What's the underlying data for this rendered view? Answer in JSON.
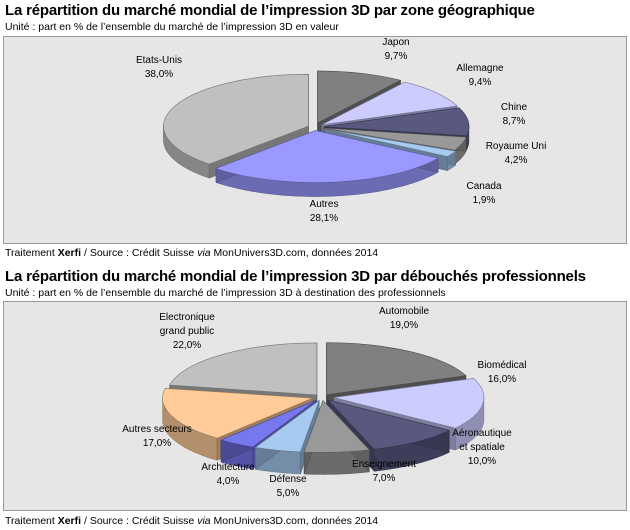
{
  "chart_data": [
    {
      "type": "pie",
      "title": "La répartition du marché mondial de l’impression 3D par zone géographique",
      "subtitle": "Unité : part en % de l’ensemble du marché de l’impression 3D en valeur",
      "unit": "%",
      "slices": [
        {
          "label": "Japon",
          "value_label": "9,7%",
          "value": 9.7,
          "color": "#808080"
        },
        {
          "label": "Allemagne",
          "value_label": "9,4%",
          "value": 9.4,
          "color": "#ccccff"
        },
        {
          "label": "Chine",
          "value_label": "8,7%",
          "value": 8.7,
          "color": "#595980"
        },
        {
          "label": "Royaume Uni",
          "value_label": "4,2%",
          "value": 4.2,
          "color": "#999999"
        },
        {
          "label": "Canada",
          "value_label": "1,9%",
          "value": 1.9,
          "color": "#a6caf0"
        },
        {
          "label": "Autres",
          "value_label": "28,1%",
          "value": 28.1,
          "color": "#9999ff"
        },
        {
          "label": "Etats-Unis",
          "value_label": "38,0%",
          "value": 38.0,
          "color": "#c0c0c0"
        }
      ]
    },
    {
      "type": "pie",
      "title": "La répartition du marché mondial de l’impression 3D par débouchés professionnels",
      "subtitle": "Unité : part en % de l’ensemble du marché de l’impression 3D à destination des professionnels",
      "unit": "%",
      "slices": [
        {
          "label": "Automobile",
          "value_label": "19,0%",
          "value": 19.0,
          "color": "#808080"
        },
        {
          "label": "Biomédical",
          "value_label": "16,0%",
          "value": 16.0,
          "color": "#ccccff"
        },
        {
          "label": "Aéronautique\net spatiale",
          "value_label": "10,0%",
          "value": 10.0,
          "color": "#595980"
        },
        {
          "label": "Enseignement",
          "value_label": "7,0%",
          "value": 7.0,
          "color": "#999999"
        },
        {
          "label": "Défense",
          "value_label": "5,0%",
          "value": 5.0,
          "color": "#a6caf0"
        },
        {
          "label": "Architecture",
          "value_label": "4,0%",
          "value": 4.0,
          "color": "#7777ee"
        },
        {
          "label": "Autres secteurs",
          "value_label": "17,0%",
          "value": 17.0,
          "color": "#ffcc99"
        },
        {
          "label": "Electronique\ngrand public",
          "value_label": "22,0%",
          "value": 22.0,
          "color": "#c0c0c0"
        }
      ]
    }
  ],
  "source": {
    "prefix": "Traitement ",
    "brand": "Xerfi",
    "middle": " / Source : Crédit Suisse ",
    "via": "via",
    "suffix": " MonUnivers3D.com, données 2014"
  }
}
